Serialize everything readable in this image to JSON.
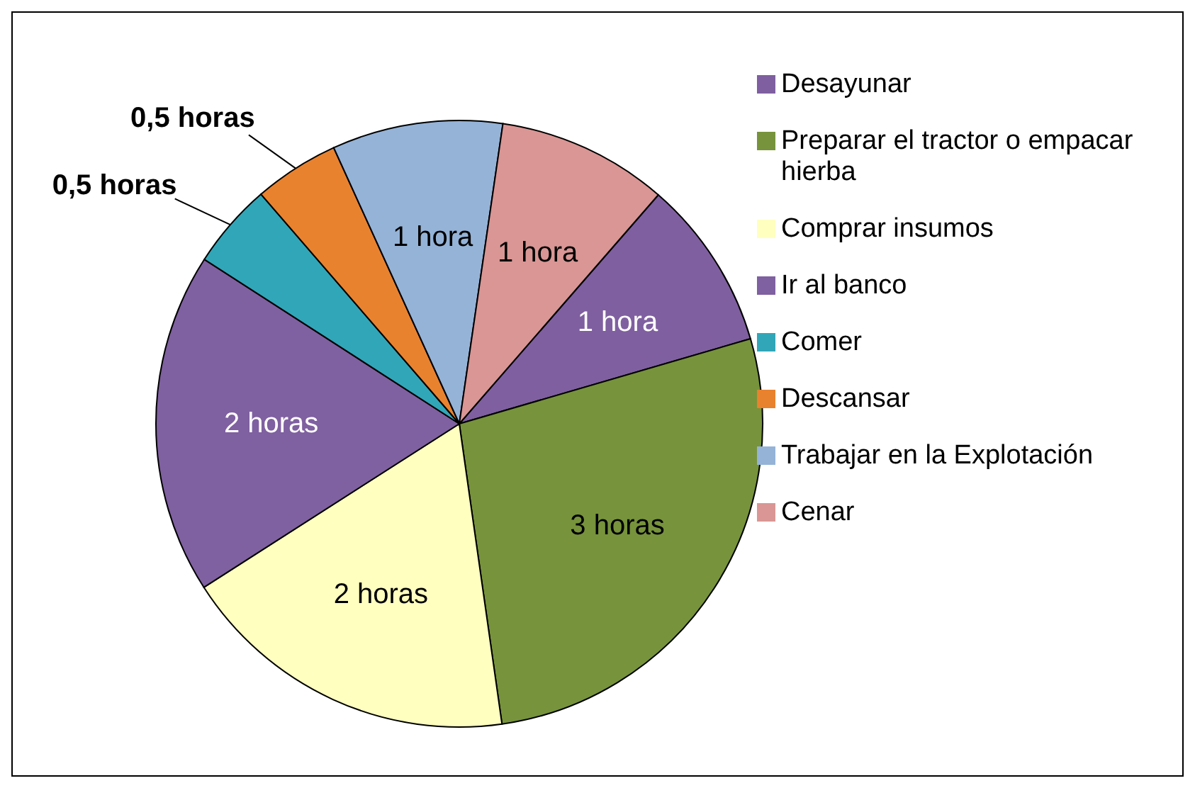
{
  "chart_data": {
    "type": "pie",
    "categories": [
      "Desayunar",
      "Preparar el tractor o empacar hierba",
      "Comprar insumos",
      "Ir al banco",
      "Comer",
      "Descansar",
      "Trabajar en la Explotación",
      "Cenar"
    ],
    "values": [
      1,
      3,
      2,
      2,
      0.5,
      0.5,
      1,
      1
    ],
    "value_labels": [
      "1 hora",
      "3 horas",
      "2 horas",
      "2 horas",
      "0,5 horas",
      "0,5 horas",
      "1 hora",
      "1 hora"
    ],
    "colors": [
      "#7f5fa0",
      "#77933c",
      "#ffffc0",
      "#7f60a0",
      "#31a6b8",
      "#e9822e",
      "#95b3d7",
      "#d99694"
    ],
    "legend": "right"
  }
}
